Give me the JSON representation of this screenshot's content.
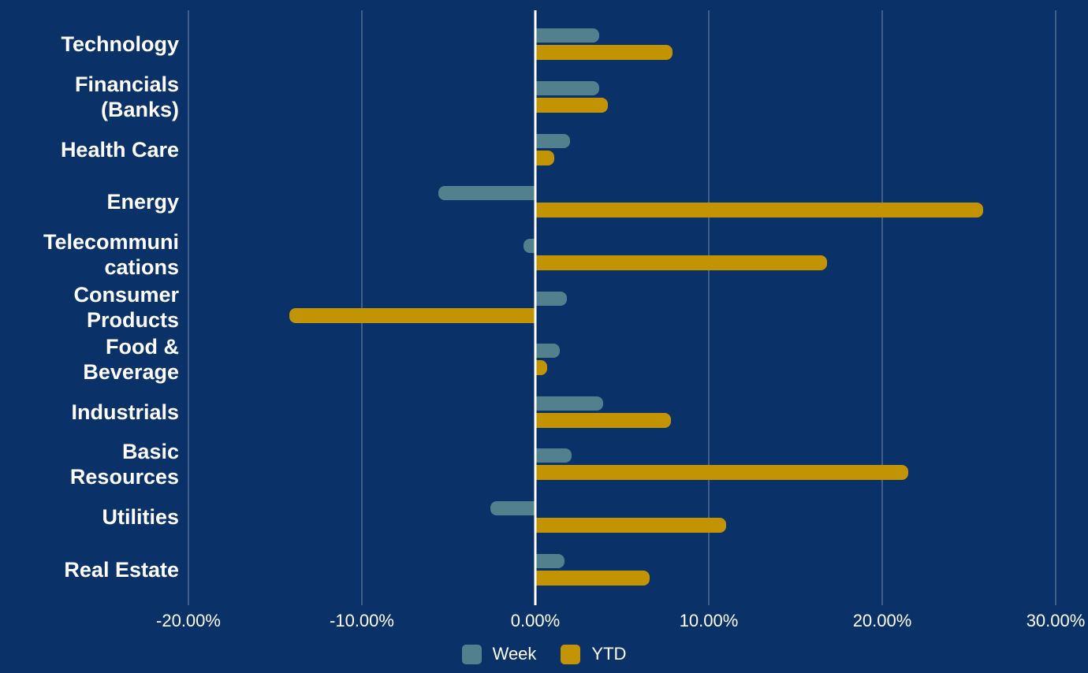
{
  "colors": {
    "background": "#0B3268",
    "week_bar": "#52818D",
    "ytd_bar": "#C29403",
    "gridline": "rgba(255,255,255,0.22)",
    "zero_line": "#FFFFFF",
    "text": "#FFFFFF"
  },
  "chart_data": {
    "type": "bar",
    "orientation": "horizontal",
    "title": "",
    "categories": [
      "Technology",
      "Financials (Banks)",
      "Health Care",
      "Energy",
      "Telecommunications",
      "Consumer Products",
      "Food & Beverage",
      "Industrials",
      "Basic Resources",
      "Utilities",
      "Real Estate"
    ],
    "category_label_lines": [
      [
        "Technology"
      ],
      [
        "Financials",
        "(Banks)"
      ],
      [
        "Health Care"
      ],
      [
        "Energy"
      ],
      [
        "Telecommuni",
        "cations"
      ],
      [
        "Consumer",
        "Products"
      ],
      [
        "Food &",
        "Beverage"
      ],
      [
        "Industrials"
      ],
      [
        "Basic",
        "Resources"
      ],
      [
        "Utilities"
      ],
      [
        "Real Estate"
      ]
    ],
    "series": [
      {
        "name": "Week",
        "color": "#52818D",
        "values": [
          3.7,
          3.7,
          2.0,
          -5.6,
          -0.7,
          1.8,
          1.4,
          3.9,
          2.1,
          -2.6,
          1.7
        ]
      },
      {
        "name": "YTD",
        "color": "#C29403",
        "values": [
          7.9,
          4.2,
          1.1,
          25.8,
          16.8,
          -14.2,
          0.7,
          7.8,
          21.5,
          11.0,
          6.6
        ]
      }
    ],
    "xlim": [
      -20,
      30
    ],
    "x_ticks": [
      -20,
      -10,
      0,
      10,
      20,
      30
    ],
    "x_tick_labels": [
      "-20.00%",
      "-10.00%",
      "0.00%",
      "10.00%",
      "20.00%",
      "30.00%"
    ],
    "value_format": "percent",
    "grid": true,
    "legend_position": "bottom"
  }
}
